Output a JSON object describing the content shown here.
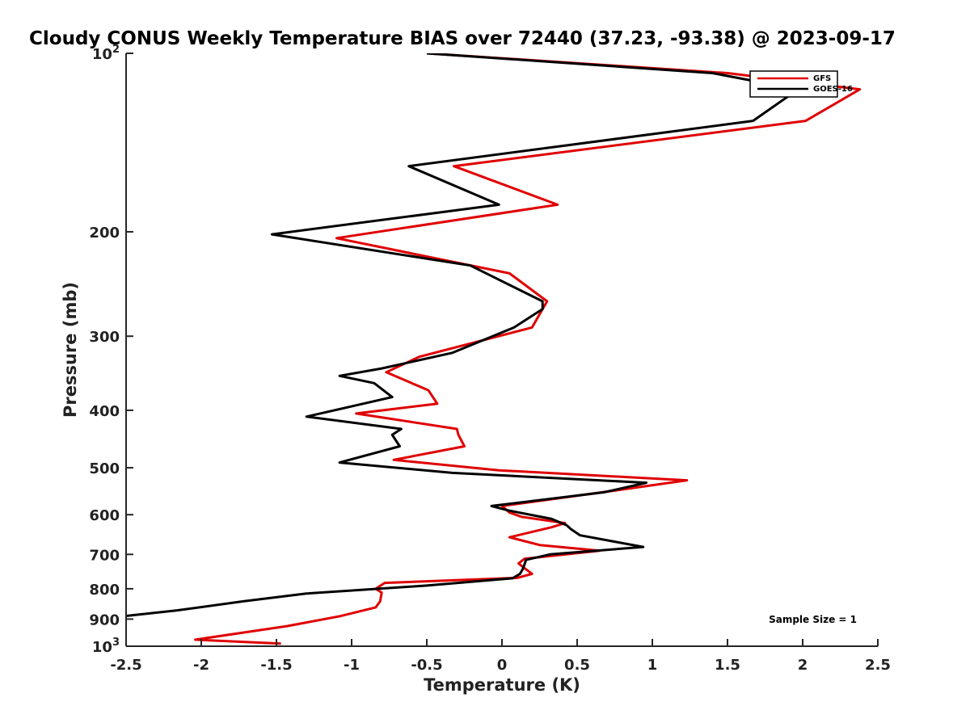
{
  "chart_data": {
    "type": "line",
    "title": "Cloudy CONUS Weekly Temperature BIAS over 72440 (37.23, -93.38) @ 2023-09-17",
    "xlabel": "Temperature (K)",
    "ylabel": "Pressure (mb)",
    "xlim": [
      -2.5,
      2.5
    ],
    "ylim": [
      100,
      1000
    ],
    "y_scale": "log",
    "y_reversed": true,
    "grid": false,
    "legend_position": "top-right",
    "x_ticks": [
      "-2.5",
      "-2",
      "-1.5",
      "-1",
      "-0.5",
      "0",
      "0.5",
      "1",
      "1.5",
      "2",
      "2.5"
    ],
    "y_ticks": [
      {
        "value": 100,
        "base": "10",
        "exp": "2"
      },
      {
        "value": 200,
        "label": "200"
      },
      {
        "value": 300,
        "label": "300"
      },
      {
        "value": 400,
        "label": "400"
      },
      {
        "value": 500,
        "label": "500"
      },
      {
        "value": 600,
        "label": "600"
      },
      {
        "value": 700,
        "label": "700"
      },
      {
        "value": 800,
        "label": "800"
      },
      {
        "value": 900,
        "label": "900"
      },
      {
        "value": 1000,
        "base": "10",
        "exp": "3"
      }
    ],
    "series": [
      {
        "name": "GFS",
        "color": "#e00000",
        "x": [
          -0.5,
          1.5,
          2.38,
          2.02,
          -0.32,
          0.37,
          -1.1,
          0.05,
          0.3,
          0.27,
          0.2,
          -0.55,
          -0.77,
          -0.49,
          -0.43,
          -0.97,
          -0.3,
          -0.29,
          -0.25,
          -0.72,
          -0.02,
          1.23,
          0.78,
          0.0,
          0.05,
          0.13,
          0.42,
          0.33,
          0.05,
          0.25,
          0.65,
          0.15,
          0.11,
          0.14,
          0.2,
          0.1,
          -0.78,
          -0.84,
          -0.8,
          -0.81,
          -0.84,
          -1.08,
          -1.43,
          -2.04,
          -1.47
        ],
        "y": [
          100,
          108,
          115,
          130,
          155,
          180,
          205,
          235,
          262,
          270,
          290,
          325,
          345,
          370,
          390,
          405,
          430,
          440,
          460,
          485,
          505,
          525,
          545,
          580,
          595,
          605,
          620,
          630,
          655,
          675,
          690,
          712,
          725,
          735,
          755,
          767,
          782,
          800,
          812,
          840,
          860,
          890,
          925,
          975,
          990
        ]
      },
      {
        "name": "GOES-16",
        "color": "#000000",
        "x": [
          -0.5,
          1.4,
          1.97,
          1.67,
          -0.62,
          -0.02,
          -1.53,
          -0.21,
          0.27,
          0.27,
          0.08,
          -0.33,
          -0.8,
          -1.08,
          -0.85,
          -0.73,
          -1.3,
          -0.67,
          -0.73,
          -0.68,
          -1.08,
          -0.33,
          0.96,
          0.68,
          -0.07,
          0.04,
          0.33,
          0.43,
          0.46,
          0.52,
          0.94,
          0.32,
          0.16,
          0.14,
          0.12,
          0.07,
          -0.5,
          -1.3,
          -1.72,
          -2.16,
          -2.52
        ],
        "y": [
          100,
          108,
          115,
          130,
          155,
          180,
          202,
          228,
          262,
          270,
          290,
          320,
          340,
          350,
          360,
          380,
          410,
          430,
          440,
          460,
          490,
          510,
          530,
          550,
          580,
          590,
          610,
          625,
          635,
          650,
          680,
          700,
          715,
          740,
          755,
          768,
          790,
          815,
          840,
          870,
          890
        ]
      }
    ],
    "legend": [
      {
        "label": "GFS",
        "color": "#e00000"
      },
      {
        "label": "GOES-16",
        "color": "#000000"
      }
    ],
    "annotation": "Sample Size = 1"
  }
}
